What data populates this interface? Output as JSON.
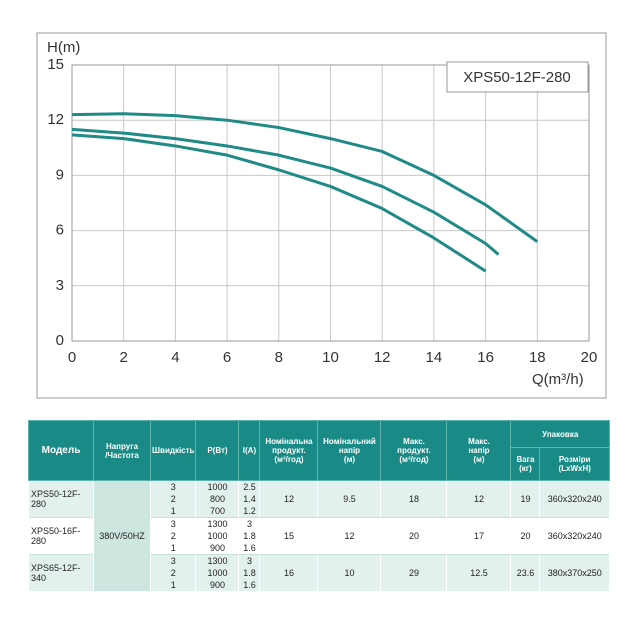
{
  "chart_data": {
    "type": "line",
    "annotation": "XPS50-12F-280",
    "y_label": "H(m)",
    "x_label": "Q(m³/h)",
    "xlim": [
      0,
      20
    ],
    "xticks": [
      0,
      2,
      4,
      6,
      8,
      10,
      12,
      14,
      16,
      18,
      20
    ],
    "ylim": [
      0,
      15
    ],
    "yticks": [
      0,
      3,
      6,
      9,
      12,
      15
    ],
    "grid": true,
    "series": [
      {
        "color": "#1f8a86",
        "x": [
          0,
          2,
          4,
          6,
          8,
          10,
          12,
          14,
          16,
          18
        ],
        "values": [
          12.3,
          12.35,
          12.25,
          12.0,
          11.6,
          11.0,
          10.3,
          9.0,
          7.4,
          5.4
        ]
      },
      {
        "color": "#1f8a86",
        "x": [
          0,
          2,
          4,
          6,
          8,
          10,
          12,
          14,
          16,
          16.5
        ],
        "values": [
          11.5,
          11.3,
          11.0,
          10.6,
          10.1,
          9.4,
          8.4,
          7.0,
          5.3,
          4.7
        ]
      },
      {
        "color": "#1f8a86",
        "x": [
          0,
          2,
          4,
          6,
          8,
          10,
          12,
          14,
          16
        ],
        "values": [
          11.2,
          11.0,
          10.6,
          10.1,
          9.3,
          8.4,
          7.2,
          5.6,
          3.8
        ]
      }
    ]
  },
  "table": {
    "header": {
      "model": "Модель",
      "voltage": "Напруга\n/Частота",
      "speed": "Швидкість",
      "power": "P(Вт)",
      "current": "I(A)",
      "nom_flow": "Номінальна\nпродукт.\n(м³/год)",
      "nom_head": "Номінальний\nнапір\n(м)",
      "max_flow": "Макс.\nпродукт.\n(м³/год)",
      "max_head": "Макс.\nнапір\n(м)",
      "packing": "Упаковка",
      "weight": "Вага\n(кг)",
      "dimensions": "Розміри\n(LxWxH)"
    },
    "voltage": "380V/50HZ",
    "rows": [
      {
        "model": "XPS50-12F-280",
        "speed": [
          "3",
          "2",
          "1"
        ],
        "power": [
          "1000",
          "800",
          "700"
        ],
        "current": [
          "2.5",
          "1.4",
          "1.2"
        ],
        "nom_flow": "12",
        "nom_head": "9.5",
        "max_flow": "18",
        "max_head": "12",
        "weight": "19",
        "dimensions": "360x320x240"
      },
      {
        "model": "XPS50-16F-280",
        "speed": [
          "3",
          "2",
          "1"
        ],
        "power": [
          "1300",
          "1000",
          "900"
        ],
        "current": [
          "3",
          "1.8",
          "1.6"
        ],
        "nom_flow": "15",
        "nom_head": "12",
        "max_flow": "20",
        "max_head": "17",
        "weight": "20",
        "dimensions": "360x320x240"
      },
      {
        "model": "XPS65-12F-340",
        "speed": [
          "3",
          "2",
          "1"
        ],
        "power": [
          "1300",
          "1000",
          "900"
        ],
        "current": [
          "3",
          "1.8",
          "1.6"
        ],
        "nom_flow": "16",
        "nom_head": "10",
        "max_flow": "29",
        "max_head": "12.5",
        "weight": "23.6",
        "dimensions": "380x370x250"
      }
    ]
  }
}
